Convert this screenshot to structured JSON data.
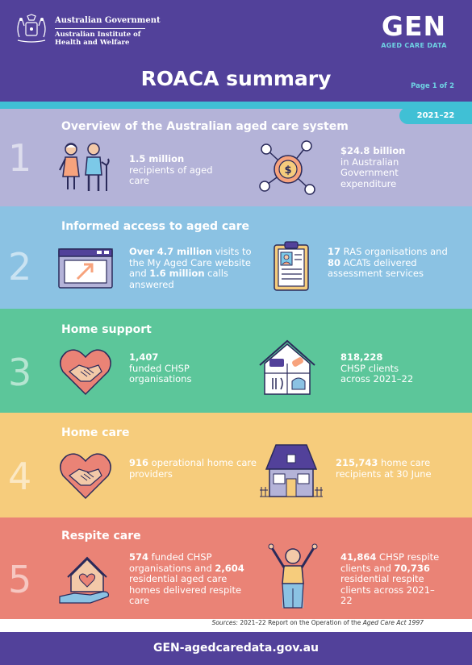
{
  "header": {
    "gov_line1": "Australian Government",
    "gov_line2": "Australian Institute of",
    "gov_line3": "Health and Welfare",
    "gen_logo": "GEN",
    "gen_sub": "AGED CARE DATA",
    "title": "ROACA summary",
    "page": "Page 1 of 2",
    "year": "2021–22"
  },
  "sections": [
    {
      "number": "1",
      "title": "Overview of the Australian aged care system",
      "left_bold": "1.5 million",
      "left_rest": "recipients of aged care",
      "right_bold": "$24.8 billion",
      "right_rest": "in Australian Government expenditure",
      "icons": [
        "elderly-couple-icon",
        "money-network-icon"
      ]
    },
    {
      "number": "2",
      "title": "Informed access to aged care",
      "left_b1": "Over 4.7 million",
      "left_t1": " visits to the My Aged Care website and ",
      "left_b2": "1.6 million",
      "left_t2": " calls answered",
      "right_b1": "17",
      "right_t1": " RAS organisations and ",
      "right_b2": "80",
      "right_t2": " ACATs delivered assessment services",
      "icons": [
        "website-window-icon",
        "clipboard-profile-icon"
      ]
    },
    {
      "number": "3",
      "title": "Home support",
      "left_bold": "1,407",
      "left_rest": "funded CHSP organisations",
      "right_bold": "818,228",
      "right_rest": "CHSP clients across 2021–22",
      "icons": [
        "heart-handshake-icon",
        "house-services-icon"
      ]
    },
    {
      "number": "4",
      "title": "Home care",
      "left_bold": "916",
      "left_rest": " operational home care providers",
      "right_bold": "215,743",
      "right_rest": " home care recipients at 30 June",
      "icons": [
        "heart-handshake-icon",
        "house-icon"
      ]
    },
    {
      "number": "5",
      "title": "Respite care",
      "left_b1": "574",
      "left_t1": " funded CHSP organisations and ",
      "left_b2": "2,604",
      "left_t2": " residential aged care homes delivered respite care",
      "right_b1": "41,864",
      "right_t1": " CHSP respite clients and ",
      "right_b2": "70,736",
      "right_t2": " residential respite clients across 2021–22",
      "icons": [
        "hand-house-heart-icon",
        "person-arms-raised-icon"
      ]
    }
  ],
  "sources": {
    "label": "Sources:",
    "text": " 2021–22 Report on the Operation of the ",
    "act": "Aged Care Act 1997"
  },
  "footer": {
    "url": "GEN-agedcaredata.gov.au"
  },
  "colors": {
    "purple": "#52419a",
    "teal": "#40c0d5",
    "sec1": "#b4b3d8",
    "sec2": "#8bc2e3",
    "sec3": "#5cc69a",
    "sec4": "#f6cc7c",
    "sec5": "#ea8376"
  }
}
